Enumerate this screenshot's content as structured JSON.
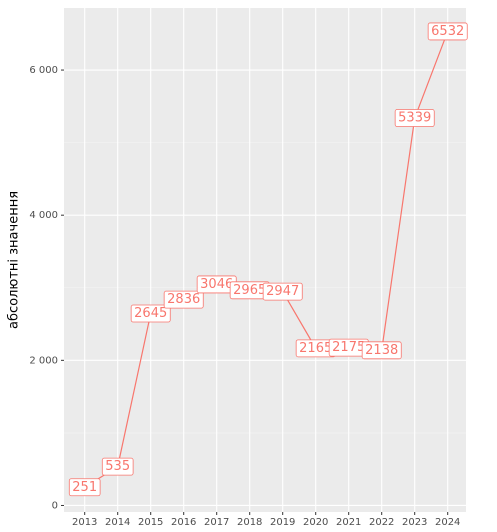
{
  "chart_data": {
    "type": "line",
    "y_label": "абсолютні значення",
    "categories": [
      "2013",
      "2014",
      "2015",
      "2016",
      "2017",
      "2018",
      "2019",
      "2020",
      "2021",
      "2022",
      "2023",
      "2024"
    ],
    "series": [
      {
        "color": "#f8766d",
        "values": [
          251,
          535,
          2645,
          2836,
          3046,
          2965,
          2947,
          2165,
          2175,
          2138,
          5339,
          6532
        ]
      }
    ],
    "ylim": [
      -90,
      6855
    ],
    "yticks": [
      {
        "value": 0,
        "label": "0"
      },
      {
        "value": 2000,
        "label": "2 000"
      },
      {
        "value": 4000,
        "label": "4 000"
      },
      {
        "value": 6000,
        "label": "6 000"
      }
    ],
    "grid": true
  }
}
